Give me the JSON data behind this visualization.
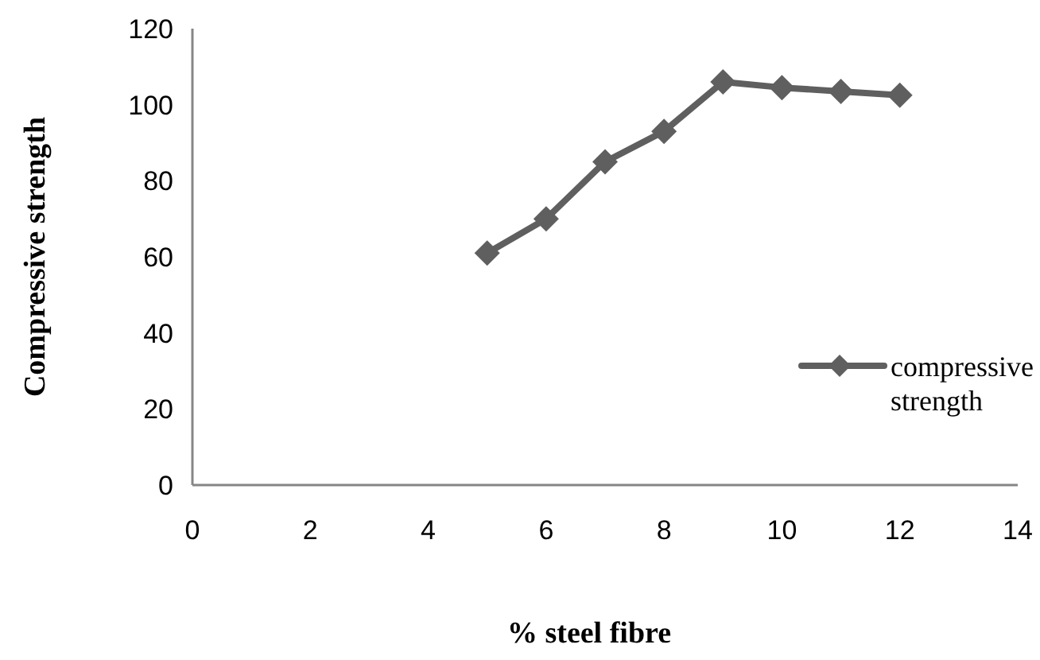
{
  "chart_data": {
    "type": "line",
    "xlabel": "% steel fibre",
    "ylabel": "Compressive strength",
    "x": [
      5,
      6,
      7,
      8,
      9,
      10,
      11,
      12
    ],
    "series": [
      {
        "name": "compressive strength",
        "color": "#5f5f5f",
        "values": [
          61,
          70,
          85,
          93,
          106,
          104.5,
          103.5,
          102.5
        ]
      }
    ],
    "xlim": [
      0,
      14
    ],
    "xticks": [
      0,
      2,
      4,
      6,
      8,
      10,
      12,
      14
    ],
    "ylim": [
      0,
      120
    ],
    "yticks": [
      0,
      20,
      40,
      60,
      80,
      100,
      120
    ],
    "grid": false,
    "legend": "right",
    "marker": "diamond",
    "line_style": "solid"
  }
}
